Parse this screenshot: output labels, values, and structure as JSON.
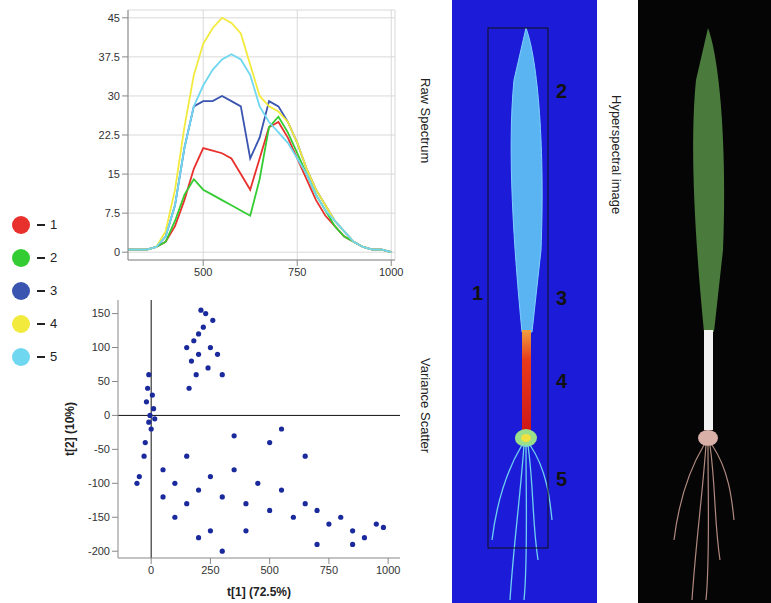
{
  "chart_data": [
    {
      "type": "line",
      "title": "Raw Spectrum",
      "x": [
        300,
        325,
        350,
        375,
        400,
        425,
        450,
        475,
        500,
        525,
        550,
        575,
        600,
        625,
        650,
        675,
        700,
        725,
        750,
        775,
        800,
        825,
        850,
        875,
        900,
        925,
        950,
        975,
        1000
      ],
      "series": [
        {
          "name": "1",
          "color": "#e8312d",
          "values": [
            0.5,
            0.5,
            0.5,
            1,
            2,
            5,
            10,
            16,
            20,
            19.5,
            19,
            18,
            15,
            12,
            18,
            24,
            25,
            22,
            18,
            14,
            10,
            7,
            5,
            3,
            2,
            1,
            0.5,
            0.5,
            0
          ]
        },
        {
          "name": "2",
          "color": "#33cc33",
          "values": [
            0.5,
            0.5,
            0.5,
            1,
            2,
            6,
            11,
            14,
            12,
            11,
            10,
            9,
            8,
            7,
            14,
            24,
            26,
            23,
            19,
            15,
            11,
            8,
            5,
            3,
            2,
            1,
            0.5,
            0.5,
            0
          ]
        },
        {
          "name": "3",
          "color": "#3a55b0",
          "values": [
            0.5,
            0.5,
            0.5,
            1,
            3,
            9,
            20,
            28,
            29,
            29,
            30,
            29,
            28,
            18,
            22,
            29,
            28,
            25,
            21,
            16,
            12,
            9,
            6,
            4,
            2,
            1,
            0.5,
            0.5,
            0
          ]
        },
        {
          "name": "4",
          "color": "#f2ea3c",
          "values": [
            0.5,
            0.5,
            0.5,
            1,
            4,
            12,
            24,
            34,
            40,
            43,
            45,
            44,
            42,
            36,
            30,
            28,
            27,
            25,
            21,
            16,
            12,
            9,
            6,
            4,
            2,
            1,
            0.5,
            0.5,
            0
          ]
        },
        {
          "name": "5",
          "color": "#6fd7f0",
          "values": [
            0.5,
            0.5,
            0.5,
            1,
            3,
            9,
            20,
            28,
            32,
            35,
            37,
            38,
            37,
            34,
            28,
            25,
            23,
            21,
            18,
            15,
            11,
            8,
            6,
            4,
            2,
            1,
            0.5,
            0.5,
            0
          ]
        }
      ],
      "xlim": [
        300,
        1010
      ],
      "xticks": [
        500,
        750,
        1000
      ],
      "ylim": [
        -1.5,
        46.5
      ],
      "yticks": [
        0,
        7.5,
        15,
        22.5,
        30,
        37.5,
        45
      ],
      "grid": true,
      "legend": "left"
    },
    {
      "type": "scatter",
      "title": "Variance Scatter",
      "x_label": "t[1] (72.5%)",
      "y_label": "t[2] (10%)",
      "x": [
        -20,
        -15,
        -10,
        -5,
        0,
        -25,
        -30,
        10,
        5,
        -10,
        15,
        150,
        180,
        200,
        220,
        250,
        170,
        200,
        230,
        260,
        190,
        240,
        280,
        300,
        210,
        160,
        50,
        100,
        150,
        200,
        250,
        300,
        350,
        400,
        450,
        500,
        550,
        600,
        650,
        700,
        750,
        800,
        850,
        900,
        950,
        980,
        100,
        200,
        300,
        400,
        500,
        550,
        350,
        250,
        150,
        50,
        -50,
        -60,
        650,
        700,
        850
      ],
      "values": [
        20,
        40,
        60,
        0,
        -20,
        -40,
        -60,
        10,
        30,
        -10,
        -5,
        100,
        110,
        120,
        130,
        100,
        80,
        90,
        150,
        140,
        60,
        70,
        90,
        60,
        155,
        40,
        -80,
        -100,
        -60,
        -110,
        -90,
        -120,
        -80,
        -130,
        -100,
        -140,
        -110,
        -150,
        -130,
        -140,
        -160,
        -150,
        -170,
        -180,
        -160,
        -165,
        -150,
        -180,
        -200,
        -170,
        -40,
        -20,
        -30,
        -170,
        -130,
        -120,
        -90,
        -100,
        -60,
        -190,
        -190
      ],
      "color": "#1a2a9c",
      "xlim": [
        -140,
        1050
      ],
      "xticks": [
        0,
        250,
        500,
        750,
        1000
      ],
      "ylim": [
        -210,
        170
      ],
      "yticks": [
        -200,
        -150,
        -100,
        -50,
        0,
        50,
        100,
        150
      ],
      "reference_lines": {
        "x": [
          0
        ],
        "y": [
          0
        ]
      },
      "grid": false
    }
  ],
  "images": {
    "false_color": {
      "region_labels": [
        "1",
        "2",
        "3",
        "4",
        "5"
      ]
    },
    "photo": {
      "title": "Hyperspectral image"
    }
  }
}
